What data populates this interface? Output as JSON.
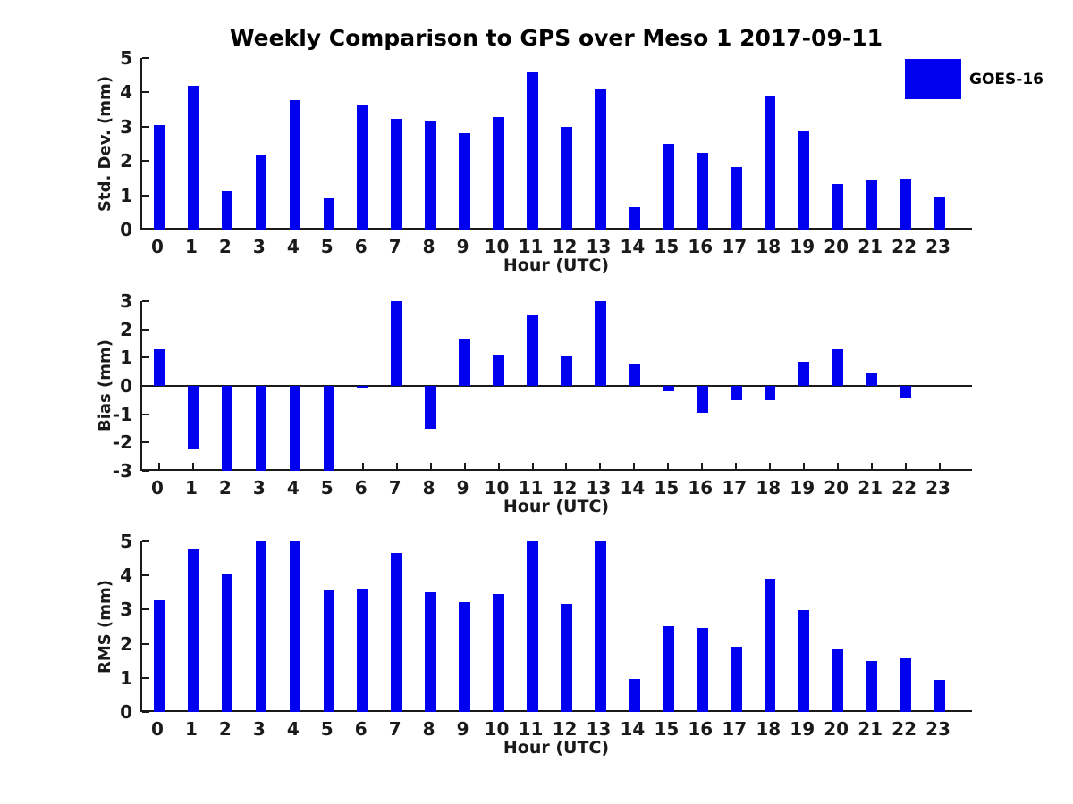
{
  "title": "Weekly Comparison to GPS over Meso 1 2017-09-11",
  "legend": {
    "label": "GOES-16",
    "swatch_color": "#0000EE",
    "position": "top-right"
  },
  "colors": {
    "bar": "#0000EE",
    "axis": "#1a1a1a",
    "background": "#ffffff"
  },
  "chart_data": [
    {
      "type": "bar",
      "panel": "top",
      "series_name": "GOES-16",
      "ylabel": "Std. Dev. (mm)",
      "xlabel": "Hour (UTC)",
      "categories": [
        "0",
        "1",
        "2",
        "3",
        "4",
        "5",
        "6",
        "7",
        "8",
        "9",
        "10",
        "11",
        "12",
        "13",
        "14",
        "15",
        "16",
        "17",
        "18",
        "19",
        "20",
        "21",
        "22",
        "23"
      ],
      "values": [
        3.05,
        4.2,
        1.12,
        2.15,
        3.78,
        0.92,
        3.62,
        3.22,
        3.18,
        2.8,
        3.27,
        4.58,
        3.0,
        4.08,
        0.65,
        2.5,
        2.25,
        1.83,
        3.87,
        2.87,
        1.33,
        1.43,
        1.48,
        0.93
      ],
      "ylim": [
        0,
        5
      ],
      "yticks": [
        0,
        1,
        2,
        3,
        4,
        5
      ],
      "xlim": [
        -0.5,
        24
      ],
      "grid": false,
      "legend_position": "top-right"
    },
    {
      "type": "bar",
      "panel": "middle",
      "series_name": "GOES-16",
      "ylabel": "Bias (mm)",
      "xlabel": "Hour (UTC)",
      "categories": [
        "0",
        "1",
        "2",
        "3",
        "4",
        "5",
        "6",
        "7",
        "8",
        "9",
        "10",
        "11",
        "12",
        "13",
        "14",
        "15",
        "16",
        "17",
        "18",
        "19",
        "20",
        "21",
        "22",
        "23"
      ],
      "values": [
        1.3,
        -2.25,
        -3,
        -3,
        -3,
        -3,
        -0.05,
        3.0,
        -1.5,
        1.65,
        1.12,
        2.5,
        1.07,
        3.0,
        0.75,
        -0.2,
        -0.95,
        -0.5,
        -0.5,
        0.85,
        1.28,
        0.47,
        -0.45,
        0
      ],
      "ylim": [
        -3,
        3
      ],
      "yticks": [
        -3,
        -2,
        -1,
        0,
        1,
        2,
        3
      ],
      "xlim": [
        -0.5,
        24
      ],
      "zero_line": true,
      "note": "bars at hours 2-5 clipped at -3; hours 7 and 13 clipped at +3",
      "grid": false
    },
    {
      "type": "bar",
      "panel": "bottom",
      "series_name": "GOES-16",
      "ylabel": "RMS (mm)",
      "xlabel": "Hour (UTC)",
      "categories": [
        "0",
        "1",
        "2",
        "3",
        "4",
        "5",
        "6",
        "7",
        "8",
        "9",
        "10",
        "11",
        "12",
        "13",
        "14",
        "15",
        "16",
        "17",
        "18",
        "19",
        "20",
        "21",
        "22",
        "23"
      ],
      "values": [
        3.28,
        4.78,
        4.02,
        5.0,
        5.0,
        3.57,
        3.62,
        4.65,
        3.52,
        3.22,
        3.45,
        5.0,
        3.17,
        5.0,
        0.98,
        2.52,
        2.45,
        1.9,
        3.9,
        2.98,
        1.82,
        1.5,
        1.56,
        0.95
      ],
      "ylim": [
        0,
        5
      ],
      "yticks": [
        0,
        1,
        2,
        3,
        4,
        5
      ],
      "xlim": [
        -0.5,
        24
      ],
      "note": "bars at hours 3, 4, 11, 13 clipped at 5",
      "grid": false
    }
  ]
}
